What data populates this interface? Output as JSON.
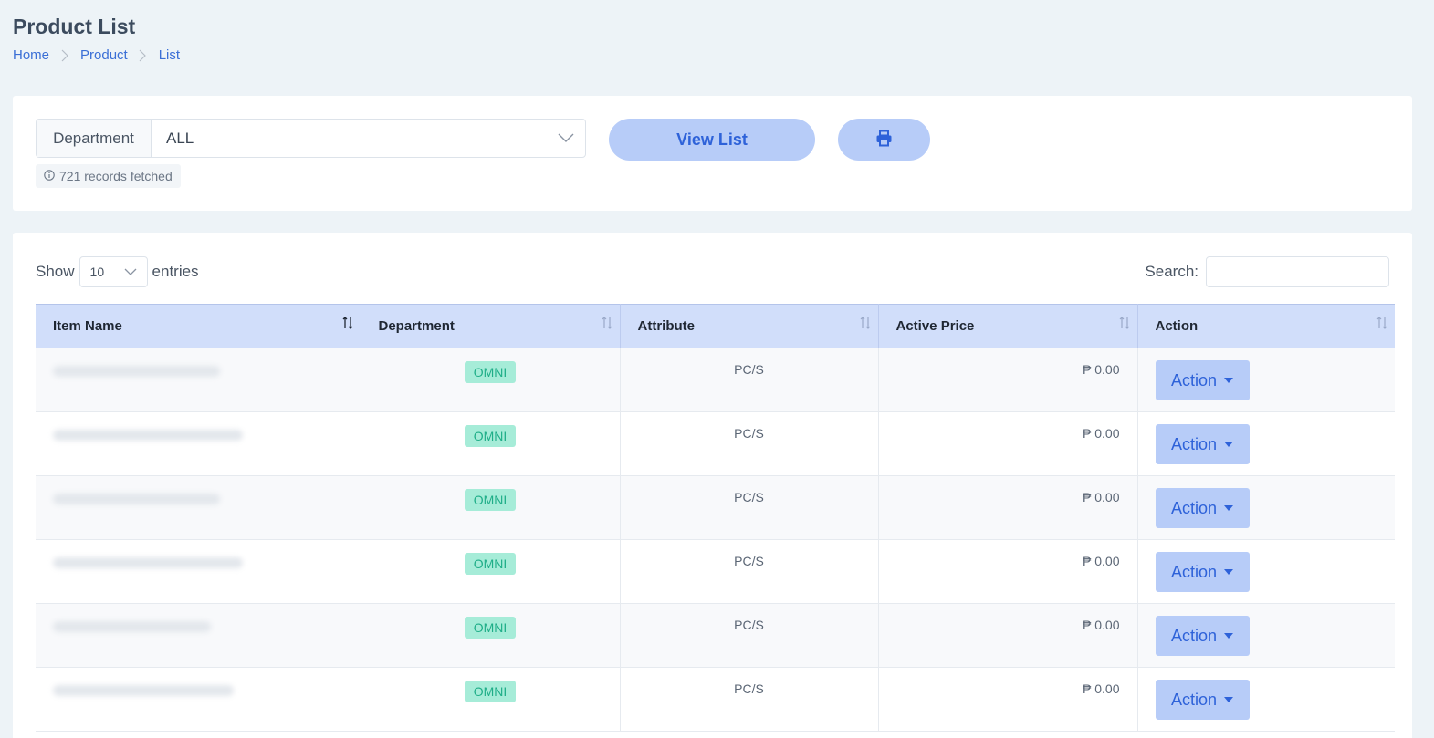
{
  "header": {
    "title": "Product List",
    "breadcrumb": [
      "Home",
      "Product",
      "List"
    ]
  },
  "filter": {
    "department_label": "Department",
    "department_value": "ALL",
    "records_text": "721 records fetched",
    "view_button": "View List",
    "print_icon": "print-icon"
  },
  "table": {
    "show_label": "Show",
    "entries_value": "10",
    "entries_label": "entries",
    "search_label": "Search:",
    "search_value": "",
    "columns": [
      "Item Name",
      "Department",
      "Attribute",
      "Active Price",
      "Action"
    ],
    "rows": [
      {
        "department": "OMNI",
        "attribute": "PC/S",
        "price": "₱ 0.00",
        "action": "Action"
      },
      {
        "department": "OMNI",
        "attribute": "PC/S",
        "price": "₱ 0.00",
        "action": "Action"
      },
      {
        "department": "OMNI",
        "attribute": "PC/S",
        "price": "₱ 0.00",
        "action": "Action"
      },
      {
        "department": "OMNI",
        "attribute": "PC/S",
        "price": "₱ 0.00",
        "action": "Action"
      },
      {
        "department": "OMNI",
        "attribute": "PC/S",
        "price": "₱ 0.00",
        "action": "Action"
      },
      {
        "department": "OMNI",
        "attribute": "PC/S",
        "price": "₱ 0.00",
        "action": "Action"
      }
    ]
  },
  "colors": {
    "accent": "#2e62d9",
    "button_bg": "#b7ccf8",
    "header_bg": "#d1defa",
    "badge_bg": "#a6ecd8",
    "badge_text": "#1fae88",
    "page_bg": "#edf3f7"
  }
}
